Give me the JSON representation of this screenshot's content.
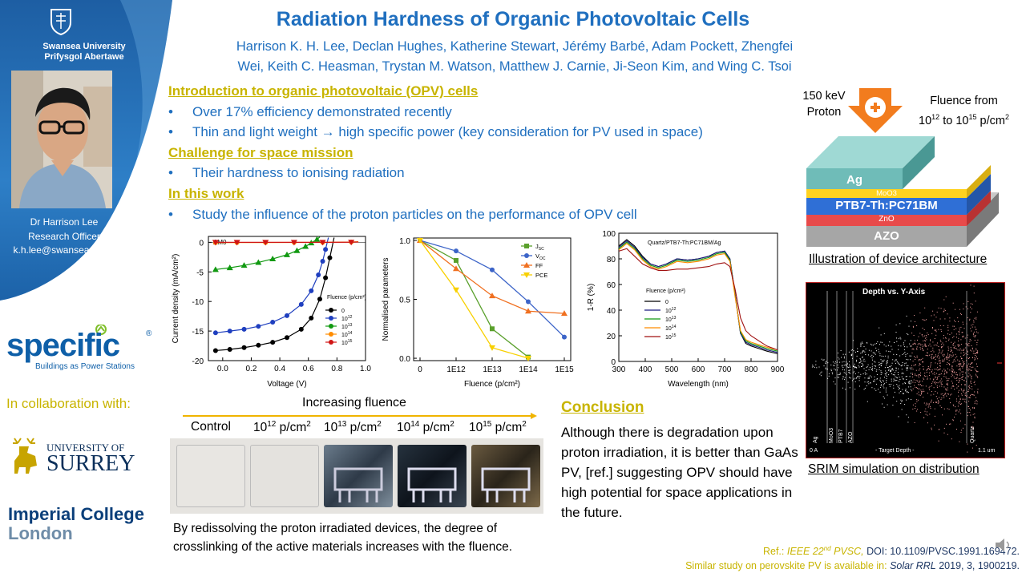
{
  "header": {
    "title": "Radiation Hardness of Organic Photovoltaic Cells",
    "authors_line1": "Harrison K. H. Lee, Declan Hughes, Katherine Stewart, Jérémy Barbé, Adam Pockett, Zhengfei",
    "authors_line2": "Wei, Keith C. Heasman, Trystan M. Watson, Matthew J. Carnie, Ji-Seon Kim, and Wing C. Tsoi"
  },
  "sidebar": {
    "university_line1": "Swansea University",
    "university_line2": "Prifysgol Abertawe",
    "person_name": "Dr Harrison Lee",
    "person_role": "Research Officer",
    "person_email": "k.h.lee@swansea.ac.uk",
    "specific_name": "specific",
    "specific_tagline": "Buildings as Power Stations",
    "collab_label": "In collaboration with:",
    "surrey_line1": "UNIVERSITY OF",
    "surrey_line2": "SURREY",
    "imperial_line1": "Imperial College",
    "imperial_line2": "London"
  },
  "intro": {
    "heading": "Introduction to organic photovoltaic (OPV) cells",
    "bullet1": "Over 17% efficiency demonstrated recently",
    "bullet2": "Thin and light weight → high specific power (key consideration for PV used in space)",
    "challenge_heading": "Challenge for space mission",
    "bullet3": "Their hardness to ionising radiation",
    "work_heading": "In this work",
    "bullet4": "Study the influence of the proton particles on the performance of OPV cell",
    "bullet_glyph": "•"
  },
  "chart_data": [
    {
      "type": "line",
      "ylabel": "Current density (mA/cm²)",
      "xlabel": "Voltage (V)",
      "annotation": "AM0",
      "legend_title": "Fluence (p/cm²)",
      "xlim": [
        -0.1,
        1.0
      ],
      "ylim": [
        -20,
        1
      ],
      "xticks": [
        "0.0",
        "0.2",
        "0.4",
        "0.6",
        "0.8",
        "1.0"
      ],
      "yticks": [
        "0",
        "-5",
        "-10",
        "-15",
        "-20"
      ],
      "series": [
        {
          "name": "0",
          "color": "#000000",
          "x": [
            -0.05,
            0.05,
            0.15,
            0.25,
            0.35,
            0.45,
            0.55,
            0.62,
            0.68,
            0.72,
            0.75,
            0.78
          ],
          "y": [
            -18.3,
            -18.1,
            -17.8,
            -17.4,
            -16.9,
            -16.1,
            -14.7,
            -12.8,
            -9.6,
            -6.0,
            -2.6,
            0.8
          ]
        },
        {
          "name": "10^12",
          "color": "#1f3fbf",
          "x": [
            -0.05,
            0.05,
            0.15,
            0.25,
            0.35,
            0.45,
            0.55,
            0.62,
            0.67,
            0.7,
            0.72,
            0.74
          ],
          "y": [
            -15.3,
            -15.0,
            -14.7,
            -14.2,
            -13.5,
            -12.4,
            -10.5,
            -8.2,
            -5.5,
            -3.2,
            -1.2,
            0.8
          ]
        },
        {
          "name": "10^13",
          "color": "#119911",
          "x": [
            -0.05,
            0.05,
            0.15,
            0.25,
            0.35,
            0.45,
            0.52,
            0.58,
            0.62,
            0.66,
            0.68
          ],
          "y": [
            -4.6,
            -4.3,
            -3.9,
            -3.4,
            -2.8,
            -2.1,
            -1.4,
            -0.7,
            -0.1,
            0.5,
            0.9
          ]
        },
        {
          "name": "10^14",
          "color": "#ff8c00",
          "x": [
            -0.05,
            0.1,
            0.3,
            0.5,
            0.7,
            0.9,
            0.95
          ],
          "y": [
            -0.05,
            -0.04,
            -0.03,
            -0.02,
            -0.01,
            0.05,
            0.1
          ]
        },
        {
          "name": "10^15",
          "color": "#d01414",
          "x": [
            -0.05,
            0.1,
            0.3,
            0.5,
            0.7,
            0.9,
            0.95
          ],
          "y": [
            0,
            0,
            0,
            0,
            0,
            0.02,
            0.05
          ]
        }
      ]
    },
    {
      "type": "line",
      "ylabel": "Normalised parameters",
      "xlabel": "Fluence (p/cm²)",
      "categories": [
        "0",
        "1E12",
        "1E13",
        "1E14",
        "1E15"
      ],
      "ylim": [
        0,
        1.0
      ],
      "yticks": [
        "1.0",
        "0.5",
        "0.0"
      ],
      "series": [
        {
          "name": "J_SC",
          "legend": "J",
          "sub": "SC",
          "color": "#5aa02c",
          "marker": "square",
          "values": [
            1.0,
            0.83,
            0.25,
            0.01,
            null
          ]
        },
        {
          "name": "V_OC",
          "legend": "V",
          "sub": "OC",
          "color": "#3c64c8",
          "marker": "circle",
          "values": [
            1.0,
            0.91,
            0.75,
            0.48,
            0.18
          ]
        },
        {
          "name": "FF",
          "legend": "FF",
          "sub": "",
          "color": "#f07020",
          "marker": "triangle",
          "values": [
            1.0,
            0.76,
            0.53,
            0.4,
            0.38
          ]
        },
        {
          "name": "PCE",
          "legend": "PCE",
          "sub": "",
          "color": "#f8d000",
          "marker": "triangle-down",
          "values": [
            1.0,
            0.58,
            0.09,
            0.0,
            null
          ]
        }
      ]
    },
    {
      "type": "line",
      "ylabel": "1-R (%)",
      "xlabel": "Wavelength (nm)",
      "annotation": "Quartz/PTB7-Th:PC71BM/Ag",
      "legend_title": "Fluence (p/cm²)",
      "xlim": [
        300,
        900
      ],
      "ylim": [
        0,
        100
      ],
      "xticks": [
        "300",
        "400",
        "500",
        "600",
        "700",
        "800",
        "900"
      ],
      "yticks": [
        "100",
        "80",
        "60",
        "40",
        "20",
        "0"
      ],
      "series": [
        {
          "name": "0",
          "color": "#000000",
          "x": [
            300,
            330,
            360,
            390,
            420,
            450,
            480,
            520,
            560,
            600,
            640,
            670,
            700,
            720,
            740,
            760,
            780,
            800,
            830,
            860,
            900
          ],
          "y": [
            90,
            95,
            90,
            82,
            76,
            74,
            76,
            80,
            79,
            80,
            82,
            85,
            86,
            80,
            52,
            22,
            14,
            12,
            10,
            8,
            6
          ]
        },
        {
          "name": "10^12",
          "color": "#1a1a80",
          "x": [
            300,
            330,
            360,
            390,
            420,
            450,
            480,
            520,
            560,
            600,
            640,
            670,
            700,
            720,
            740,
            760,
            780,
            800,
            830,
            860,
            900
          ],
          "y": [
            89,
            94,
            89,
            81,
            76,
            74,
            76,
            80,
            79,
            80,
            82,
            85,
            86,
            80,
            52,
            22,
            15,
            13,
            11,
            9,
            7
          ]
        },
        {
          "name": "10^13",
          "color": "#119911",
          "x": [
            300,
            330,
            360,
            390,
            420,
            450,
            480,
            520,
            560,
            600,
            640,
            670,
            700,
            720,
            740,
            760,
            780,
            800,
            830,
            860,
            900
          ],
          "y": [
            88,
            93,
            88,
            80,
            75,
            73,
            75,
            79,
            78,
            79,
            81,
            84,
            85,
            79,
            51,
            23,
            16,
            14,
            12,
            10,
            8
          ]
        },
        {
          "name": "10^14",
          "color": "#ff8c00",
          "x": [
            300,
            330,
            360,
            390,
            420,
            450,
            480,
            520,
            560,
            600,
            640,
            670,
            700,
            720,
            740,
            760,
            780,
            800,
            830,
            860,
            900
          ],
          "y": [
            87,
            92,
            87,
            79,
            74,
            72,
            74,
            78,
            77,
            78,
            80,
            83,
            84,
            78,
            50,
            24,
            17,
            15,
            13,
            11,
            9
          ]
        },
        {
          "name": "10^15",
          "color": "#a01010",
          "x": [
            300,
            330,
            360,
            390,
            420,
            450,
            480,
            520,
            560,
            600,
            640,
            670,
            700,
            720,
            740,
            760,
            780,
            800,
            830,
            860,
            900
          ],
          "y": [
            86,
            88,
            82,
            76,
            73,
            71,
            71,
            72,
            72,
            73,
            74,
            76,
            77,
            74,
            56,
            34,
            24,
            20,
            16,
            12,
            9
          ]
        }
      ]
    }
  ],
  "device": {
    "beam_label_line1": "150 keV",
    "beam_label_line2": "Proton",
    "fluence_line1": "Fluence from",
    "fluence_line2_a": "10",
    "fluence_line2_sup1": "12",
    "fluence_line2_b": " to 10",
    "fluence_line2_sup2": "15",
    "fluence_line2_c": " p/cm",
    "fluence_line2_sup3": "2",
    "layer_ag": "Ag",
    "layer_moo3": "MoO3",
    "layer_active": "PTB7-Th:PC71BM",
    "layer_zno": "ZnO",
    "layer_azo": "AZO",
    "caption": "Illustration of device architecture"
  },
  "srim": {
    "title": "Depth vs. Y-Axis",
    "caption": "SRIM simulation on distribution",
    "layer_labels": [
      "Ag",
      "MoO3",
      "PTB7",
      "AZO",
      "Quartz"
    ],
    "axis_left": "0 A",
    "axis_mid": "- Target Depth -",
    "axis_right": "1.1 um"
  },
  "samples": {
    "heading": "Increasing fluence",
    "labels": [
      {
        "base": "Control",
        "sup": "",
        "unit": "",
        "unit_sup": ""
      },
      {
        "base": "10",
        "sup": "12",
        "unit": " p/cm",
        "unit_sup": "2"
      },
      {
        "base": "10",
        "sup": "13",
        "unit": " p/cm",
        "unit_sup": "2"
      },
      {
        "base": "10",
        "sup": "14",
        "unit": " p/cm",
        "unit_sup": "2"
      },
      {
        "base": "10",
        "sup": "15",
        "unit": " p/cm",
        "unit_sup": "2"
      }
    ],
    "description": "By redissolving the proton irradiated devices, the degree of crosslinking of the active materials increases with the fluence."
  },
  "conclusion": {
    "heading": "Conclusion",
    "body": "Although there is degradation upon proton irradiation, it is better than GaAs PV, [ref.] suggesting OPV should have high potential for space applications in the future."
  },
  "refs": {
    "ref1_prefix": "Ref.: ",
    "ref1_journal": "IEEE 22",
    "ref1_sup": "nd",
    "ref1_journal2": " PVSC,",
    "ref1_doi": " DOI: 10.1109/PVSC.1991.169472.",
    "ref2_prefix": "Similar study on perovskite PV is available in: ",
    "ref2_journal": "Solar RRL",
    "ref2_tail": " 2019, 3, 1900219."
  },
  "colors": {
    "title_blue": "#1f6fbf",
    "heading_yellow": "#c8b400",
    "sidebar_blue": "#1d63a9"
  }
}
